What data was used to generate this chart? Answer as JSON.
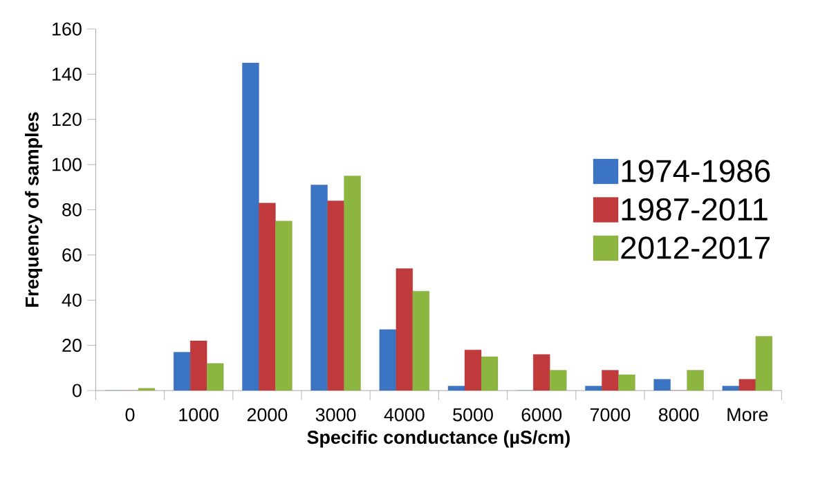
{
  "chart_data": {
    "type": "bar",
    "xlabel": "Specific conductance (µS/cm)",
    "ylabel": "Frequency of samples",
    "categories": [
      "0",
      "1000",
      "2000",
      "3000",
      "4000",
      "5000",
      "6000",
      "7000",
      "8000",
      "More"
    ],
    "series": [
      {
        "name": "1974-1986",
        "color": "#3a74c2",
        "values": [
          0,
          17,
          145,
          91,
          27,
          2,
          0,
          2,
          5,
          2
        ]
      },
      {
        "name": "1987-2011",
        "color": "#c0393b",
        "values": [
          0,
          22,
          83,
          84,
          54,
          18,
          16,
          9,
          0,
          5
        ]
      },
      {
        "name": "2012-2017",
        "color": "#8db640",
        "values": [
          1,
          12,
          75,
          95,
          44,
          15,
          9,
          7,
          9,
          24
        ]
      }
    ],
    "ylim": [
      0,
      160
    ],
    "yticks": [
      0,
      20,
      40,
      60,
      80,
      100,
      120,
      140,
      160
    ],
    "legend": "right"
  }
}
